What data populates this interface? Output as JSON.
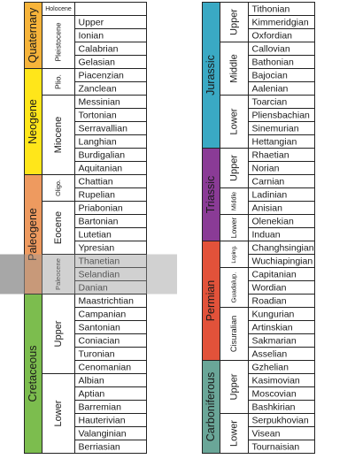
{
  "columns": [
    {
      "periods": [
        {
          "name": "Quaternary",
          "color": "#f7b43a",
          "epochs": [
            {
              "name": "Holocene",
              "stages": []
            },
            {
              "name": "Pleistocene",
              "stages": [
                "Upper",
                "Ionian",
                "Calabrian",
                "Gelasian"
              ]
            }
          ]
        },
        {
          "name": "Neogene",
          "color": "#ffe61a",
          "epochs": [
            {
              "name": "Plio.",
              "stages": [
                "Piacenzian",
                "Zanclean"
              ]
            },
            {
              "name": "Miocene",
              "stages": [
                "Messinian",
                "Tortonian",
                "Serravallian",
                "Langhian",
                "Burdigalian",
                "Aquitanian"
              ]
            }
          ]
        },
        {
          "name": "Paleogene",
          "color": "#ee9a5f",
          "epochs": [
            {
              "name": "Oligo.",
              "stages": [
                "Chattian",
                "Rupelian"
              ]
            },
            {
              "name": "Eocene",
              "stages": [
                "Priabonian",
                "Bartonian",
                "Lutetian",
                "Ypresian"
              ]
            },
            {
              "name": "Paleocene",
              "stages": [
                "Thanetian",
                "Selandian",
                "Danian"
              ]
            }
          ]
        },
        {
          "name": "Cretaceous",
          "color": "#7cbd4e",
          "epochs": [
            {
              "name": "Upper",
              "stages": [
                "Maastrichtian",
                "Campanian",
                "Santonian",
                "Coniacian",
                "Turonian",
                "Cenomanian"
              ]
            },
            {
              "name": "Lower",
              "stages": [
                "Albian",
                "Aptian",
                "Barremian",
                "Hauterivian",
                "Valanginian",
                "Berriasian"
              ]
            }
          ]
        }
      ]
    },
    {
      "periods": [
        {
          "name": "Jurassic",
          "color": "#3aa9c4",
          "epochs": [
            {
              "name": "Upper",
              "stages": [
                "Tithonian",
                "Kimmeridgian",
                "Oxfordian"
              ]
            },
            {
              "name": "Middle",
              "stages": [
                "Callovian",
                "Bathonian",
                "Bajocian",
                "Aalenian"
              ]
            },
            {
              "name": "Lower",
              "stages": [
                "Toarcian",
                "Pliensbachian",
                "Sinemurian",
                "Hettangian"
              ]
            }
          ]
        },
        {
          "name": "Triassic",
          "color": "#8a3b96",
          "epochs": [
            {
              "name": "Upper",
              "stages": [
                "Rhaetian",
                "Norian",
                "Carnian"
              ]
            },
            {
              "name": "Middle",
              "stages": [
                "Ladinian",
                "Anisian"
              ]
            },
            {
              "name": "Lower",
              "stages": [
                "Olenekian",
                "Induan"
              ]
            }
          ]
        },
        {
          "name": "Permian",
          "color": "#e2523a",
          "epochs": [
            {
              "name": "Loping.",
              "stages": [
                "Changhsingian",
                "Wuchiapingian"
              ]
            },
            {
              "name": "Guadalup.",
              "stages": [
                "Capitanian",
                "Wordian",
                "Roadian"
              ]
            },
            {
              "name": "Cisuralian",
              "stages": [
                "Kungurian",
                "Artinskian",
                "Sakmarian",
                "Asselian"
              ]
            }
          ]
        },
        {
          "name": "Carboniferous",
          "color": "#6aa698",
          "epochs": [
            {
              "name": "Upper",
              "stages": [
                "Gzhelian",
                "Kasimovian",
                "Moscovian",
                "Bashkirian"
              ]
            },
            {
              "name": "Lower",
              "stages": [
                "Serpukhovian",
                "Visean",
                "Tournaisian"
              ]
            }
          ]
        }
      ]
    }
  ]
}
